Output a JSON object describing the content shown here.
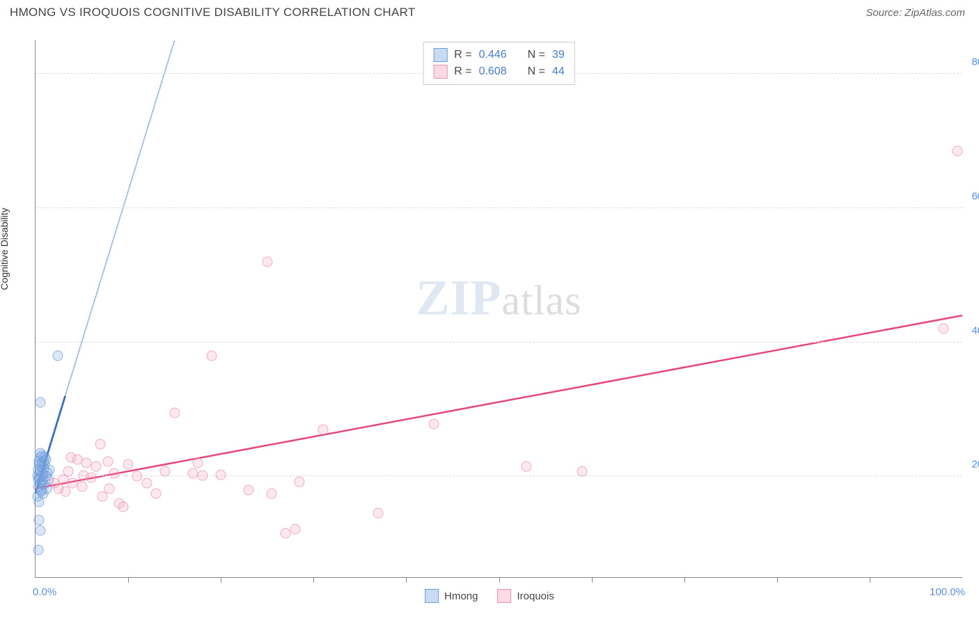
{
  "header": {
    "title": "HMONG VS IROQUOIS COGNITIVE DISABILITY CORRELATION CHART",
    "source": "Source: ZipAtlas.com"
  },
  "watermark": {
    "zip": "ZIP",
    "atlas": "atlas"
  },
  "chart": {
    "type": "scatter",
    "ylabel": "Cognitive Disability",
    "xlim": [
      0,
      100
    ],
    "ylim": [
      5,
      85
    ],
    "xticks_major": [
      0,
      100
    ],
    "xticks_minor": [
      10,
      20,
      30,
      40,
      50,
      60,
      70,
      80,
      90
    ],
    "ytick_labels": [
      {
        "v": 20,
        "label": "20.0%"
      },
      {
        "v": 40,
        "label": "40.0%"
      },
      {
        "v": 60,
        "label": "60.0%"
      },
      {
        "v": 80,
        "label": "80.0%"
      }
    ],
    "xtick_labels": [
      {
        "v": 0,
        "label": "0.0%",
        "align": "left"
      },
      {
        "v": 100,
        "label": "100.0%",
        "align": "right"
      }
    ],
    "grid_color": "#dddddd",
    "axis_color": "#888888",
    "background_color": "#ffffff",
    "series": [
      {
        "name": "Hmong",
        "color_fill": "rgba(120,165,225,0.35)",
        "color_stroke": "#6a9ad8",
        "R": "0.446",
        "N": "39",
        "points": [
          {
            "x": 0.3,
            "y": 9
          },
          {
            "x": 0.5,
            "y": 12
          },
          {
            "x": 0.4,
            "y": 13.5
          },
          {
            "x": 0.2,
            "y": 17
          },
          {
            "x": 0.6,
            "y": 17.8
          },
          {
            "x": 0.3,
            "y": 18.5
          },
          {
            "x": 0.5,
            "y": 19
          },
          {
            "x": 0.7,
            "y": 19.2
          },
          {
            "x": 0.4,
            "y": 19.8
          },
          {
            "x": 0.6,
            "y": 20
          },
          {
            "x": 0.8,
            "y": 20.4
          },
          {
            "x": 0.5,
            "y": 20.8
          },
          {
            "x": 0.3,
            "y": 21
          },
          {
            "x": 0.9,
            "y": 21.2
          },
          {
            "x": 0.6,
            "y": 21.5
          },
          {
            "x": 1.0,
            "y": 21.8
          },
          {
            "x": 0.7,
            "y": 22
          },
          {
            "x": 0.4,
            "y": 22.3
          },
          {
            "x": 1.1,
            "y": 22.5
          },
          {
            "x": 0.8,
            "y": 17.5
          },
          {
            "x": 0.5,
            "y": 31
          },
          {
            "x": 2.4,
            "y": 38
          },
          {
            "x": 1.2,
            "y": 18.2
          },
          {
            "x": 0.9,
            "y": 18.8
          },
          {
            "x": 1.4,
            "y": 19.5
          },
          {
            "x": 0.2,
            "y": 20.2
          },
          {
            "x": 0.6,
            "y": 22.8
          },
          {
            "x": 1.0,
            "y": 23
          },
          {
            "x": 1.3,
            "y": 20.6
          },
          {
            "x": 0.4,
            "y": 16.2
          },
          {
            "x": 0.7,
            "y": 23.2
          },
          {
            "x": 1.5,
            "y": 21
          },
          {
            "x": 0.8,
            "y": 19.5
          },
          {
            "x": 0.3,
            "y": 19.5
          },
          {
            "x": 0.5,
            "y": 23.5
          },
          {
            "x": 0.9,
            "y": 22.2
          },
          {
            "x": 1.1,
            "y": 20
          },
          {
            "x": 0.6,
            "y": 18
          },
          {
            "x": 0.4,
            "y": 21.8
          }
        ],
        "trend": {
          "x1": 0,
          "y1": 17.5,
          "x2": 3.2,
          "y2": 32,
          "extend_x2": 15,
          "extend_y2": 85,
          "color": "#3b6fc4"
        }
      },
      {
        "name": "Iroquois",
        "color_fill": "rgba(240,150,180,0.28)",
        "color_stroke": "#e78fb0",
        "R": "0.608",
        "N": "44",
        "points": [
          {
            "x": 2,
            "y": 19
          },
          {
            "x": 2.5,
            "y": 18.2
          },
          {
            "x": 3,
            "y": 19.5
          },
          {
            "x": 3.2,
            "y": 17.8
          },
          {
            "x": 3.8,
            "y": 22.8
          },
          {
            "x": 4,
            "y": 19
          },
          {
            "x": 4.5,
            "y": 22.5
          },
          {
            "x": 5,
            "y": 18.5
          },
          {
            "x": 5.2,
            "y": 20.2
          },
          {
            "x": 5.5,
            "y": 22
          },
          {
            "x": 6,
            "y": 19.8
          },
          {
            "x": 7,
            "y": 24.8
          },
          {
            "x": 7.2,
            "y": 17
          },
          {
            "x": 7.8,
            "y": 22.2
          },
          {
            "x": 8.5,
            "y": 20.5
          },
          {
            "x": 9,
            "y": 16
          },
          {
            "x": 9.5,
            "y": 15.5
          },
          {
            "x": 10,
            "y": 21.8
          },
          {
            "x": 11,
            "y": 20
          },
          {
            "x": 12,
            "y": 19
          },
          {
            "x": 13,
            "y": 17.5
          },
          {
            "x": 14,
            "y": 20.8
          },
          {
            "x": 15,
            "y": 29.5
          },
          {
            "x": 17,
            "y": 20.5
          },
          {
            "x": 17.5,
            "y": 22
          },
          {
            "x": 18,
            "y": 20.2
          },
          {
            "x": 19,
            "y": 38
          },
          {
            "x": 20,
            "y": 20.3
          },
          {
            "x": 23,
            "y": 18
          },
          {
            "x": 25,
            "y": 52
          },
          {
            "x": 25.5,
            "y": 17.5
          },
          {
            "x": 27,
            "y": 11.5
          },
          {
            "x": 28,
            "y": 12.2
          },
          {
            "x": 28.5,
            "y": 19.2
          },
          {
            "x": 31,
            "y": 27
          },
          {
            "x": 37,
            "y": 14.5
          },
          {
            "x": 43,
            "y": 27.8
          },
          {
            "x": 53,
            "y": 21.5
          },
          {
            "x": 59,
            "y": 20.8
          },
          {
            "x": 98,
            "y": 42
          },
          {
            "x": 99.5,
            "y": 68.5
          },
          {
            "x": 3.5,
            "y": 20.8
          },
          {
            "x": 6.5,
            "y": 21.5
          },
          {
            "x": 8,
            "y": 18.2
          }
        ],
        "trend": {
          "x1": 0,
          "y1": 18.2,
          "x2": 100,
          "y2": 44,
          "color": "#e5467e"
        }
      }
    ],
    "legend_top": {
      "rows": [
        {
          "swatch": "blue",
          "r_label": "R =",
          "r_val": "0.446",
          "n_label": "N =",
          "n_val": "39"
        },
        {
          "swatch": "pink",
          "r_label": "R =",
          "r_val": "0.608",
          "n_label": "N =",
          "n_val": "44"
        }
      ]
    },
    "legend_bottom": [
      {
        "swatch": "blue",
        "label": "Hmong"
      },
      {
        "swatch": "pink",
        "label": "Iroquois"
      }
    ]
  }
}
